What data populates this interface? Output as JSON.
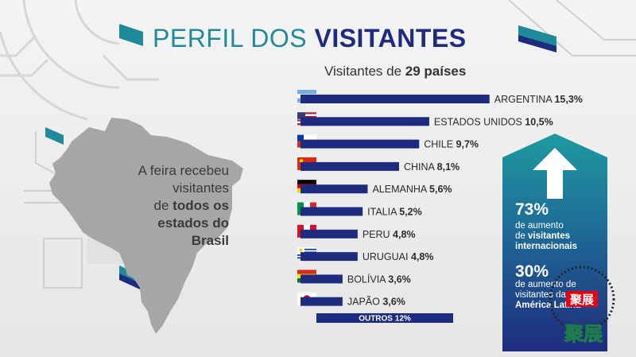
{
  "title": {
    "part1": "PERFIL DOS ",
    "part2": "VISITANTES"
  },
  "subtitle": {
    "prefix": "Visitantes de ",
    "bold": "29 países"
  },
  "map_text": {
    "line1": "A feira recebeu",
    "line2": "visitantes",
    "line3_plain": "de ",
    "line3_bold": "todos os",
    "line4": "estados do",
    "line5": "Brasil"
  },
  "highlights": {
    "pct1": "73%",
    "text1a": "de aumento",
    "text1b_plain": "de ",
    "text1b_bold": "visitantes",
    "text1c": "internacionais",
    "pct2": "30%",
    "text2a": "de aumento de",
    "text2b": "visitantes da",
    "text2c": "América Latina"
  },
  "watermark": {
    "seal_text": "聚展",
    "brand_text": "聚展"
  },
  "colors": {
    "bar": "#1e2b7e",
    "teal": "#1e8a9a",
    "map": "#a6a6a6"
  },
  "chart_data": {
    "type": "bar",
    "orientation": "horizontal",
    "title": "Visitantes de 29 países",
    "unit": "%",
    "categories": [
      "ARGENTINA",
      "ESTADOS UNIDOS",
      "CHILE",
      "CHINA",
      "ALEMANHA",
      "ITALIA",
      "PERU",
      "URUGUAI",
      "BOLÍVIA",
      "JAPÃO",
      "OUTROS"
    ],
    "values": [
      15.3,
      10.5,
      9.7,
      8.1,
      5.6,
      5.2,
      4.8,
      4.8,
      3.6,
      3.6,
      12
    ],
    "value_labels": [
      "15,3%",
      "10,5%",
      "9,7%",
      "8,1%",
      "5,6%",
      "5,2%",
      "4,8%",
      "4,8%",
      "3,6%",
      "3,6%",
      "12%"
    ],
    "flags": [
      "argentina",
      "usa",
      "chile",
      "china",
      "germany",
      "italy",
      "peru",
      "uruguay",
      "bolivia",
      "japan",
      ""
    ]
  }
}
